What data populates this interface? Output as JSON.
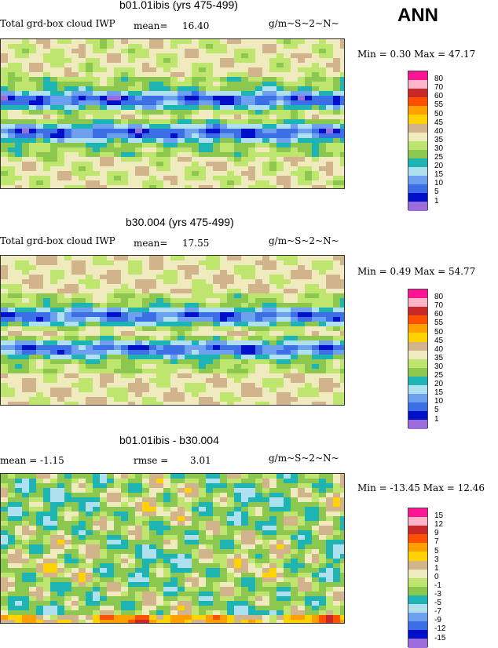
{
  "season": "ANN",
  "panels": [
    {
      "title": "b01.01ibis (yrs 475-499)",
      "left_label": "Total grd-box cloud IWP",
      "stat_label": "mean=",
      "stat_value": "16.40",
      "units": "g/m~S~2~N~",
      "minmax": "Min =   0.30 Max =  47.17",
      "top": 50
    },
    {
      "title": "b30.004 (yrs 475-499)",
      "left_label": "Total grd-box cloud IWP",
      "stat_label": "mean=",
      "stat_value": "17.55",
      "units": "g/m~S~2~N~",
      "minmax": "Min =   0.49 Max =  54.77",
      "top": 325
    },
    {
      "title": "b01.01ibis - b30.004",
      "left_label": "mean =   -1.15",
      "stat_label": "rmse =",
      "stat_value": "3.01",
      "units": "g/m~S~2~N~",
      "minmax": "Min = -13.45 Max =  12.46",
      "top": 603
    }
  ],
  "chart_data": [
    {
      "type": "heatmap",
      "title": "b01.01ibis (yrs 475-499)",
      "variable": "Total grd-box cloud IWP",
      "units": "g/m~S~2~N~",
      "mean": 16.4,
      "min": 0.3,
      "max": 47.17,
      "levels": [
        1,
        5,
        10,
        15,
        20,
        25,
        30,
        35,
        40,
        45,
        50,
        55,
        60,
        70,
        80
      ],
      "colors": [
        "#9b6ddc",
        "#0010c8",
        "#3c6ee6",
        "#6ea0f0",
        "#aee0f0",
        "#1eb4b4",
        "#8cc850",
        "#bee66e",
        "#f0ebbe",
        "#d2b48c",
        "#ffd200",
        "#ffa000",
        "#ff5000",
        "#c82828",
        "#ffb4c8",
        "#ff1493"
      ]
    },
    {
      "type": "heatmap",
      "title": "b30.004 (yrs 475-499)",
      "variable": "Total grd-box cloud IWP",
      "units": "g/m~S~2~N~",
      "mean": 17.55,
      "min": 0.49,
      "max": 54.77,
      "levels": [
        1,
        5,
        10,
        15,
        20,
        25,
        30,
        35,
        40,
        45,
        50,
        55,
        60,
        70,
        80
      ],
      "colors": [
        "#9b6ddc",
        "#0010c8",
        "#3c6ee6",
        "#6ea0f0",
        "#aee0f0",
        "#1eb4b4",
        "#8cc850",
        "#bee66e",
        "#f0ebbe",
        "#d2b48c",
        "#ffd200",
        "#ffa000",
        "#ff5000",
        "#c82828",
        "#ffb4c8",
        "#ff1493"
      ]
    },
    {
      "type": "heatmap",
      "title": "b01.01ibis - b30.004",
      "units": "g/m~S~2~N~",
      "mean": -1.15,
      "rmse": 3.01,
      "min": -13.45,
      "max": 12.46,
      "levels": [
        -15,
        -12,
        -9,
        -7,
        -5,
        -3,
        -1,
        0,
        1,
        3,
        5,
        7,
        9,
        12,
        15
      ],
      "colors": [
        "#9b6ddc",
        "#0010c8",
        "#3c6ee6",
        "#6ea0f0",
        "#aee0f0",
        "#1eb4b4",
        "#8cc850",
        "#bee66e",
        "#f0ebbe",
        "#d2b48c",
        "#ffd200",
        "#ffa000",
        "#ff5000",
        "#c82828",
        "#ffb4c8",
        "#ff1493"
      ]
    }
  ]
}
